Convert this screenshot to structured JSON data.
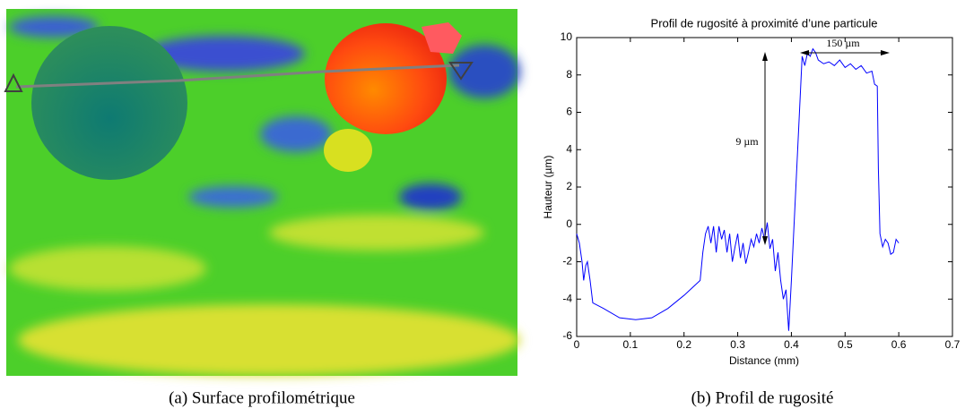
{
  "chart_data": {
    "type": "line",
    "title": "Profil de rugosité à proximité d’une particule",
    "x_label": "Distance (mm)",
    "y_label": "Hauteur (µm)",
    "x": [
      0,
      0.005,
      0.01,
      0.013,
      0.017,
      0.02,
      0.025,
      0.03,
      0.05,
      0.08,
      0.11,
      0.14,
      0.17,
      0.2,
      0.23,
      0.235,
      0.24,
      0.245,
      0.25,
      0.255,
      0.26,
      0.265,
      0.27,
      0.275,
      0.28,
      0.285,
      0.29,
      0.295,
      0.3,
      0.305,
      0.31,
      0.315,
      0.32,
      0.325,
      0.33,
      0.335,
      0.34,
      0.345,
      0.35,
      0.355,
      0.36,
      0.365,
      0.37,
      0.375,
      0.38,
      0.385,
      0.39,
      0.395,
      0.4,
      0.405,
      0.41,
      0.415,
      0.42,
      0.425,
      0.43,
      0.435,
      0.44,
      0.445,
      0.45,
      0.46,
      0.47,
      0.48,
      0.49,
      0.5,
      0.51,
      0.52,
      0.53,
      0.54,
      0.55,
      0.555,
      0.56,
      0.562,
      0.565,
      0.57,
      0.575,
      0.58,
      0.585,
      0.59,
      0.595,
      0.6
    ],
    "values": [
      -0.5,
      -1,
      -2,
      -3,
      -2.2,
      -2,
      -3,
      -4.2,
      -4.5,
      -5,
      -5.1,
      -5,
      -4.5,
      -3.8,
      -3,
      -1.5,
      -0.5,
      -0.1,
      -1,
      -0.1,
      -1.5,
      -0.1,
      -0.8,
      -0.3,
      -1.5,
      -0.5,
      -2,
      -1.2,
      -0.5,
      -1.8,
      -1,
      -2.1,
      -1.5,
      -0.8,
      -1.2,
      -0.5,
      -1,
      -0.2,
      -0.8,
      0.1,
      -1.3,
      -0.8,
      -2.5,
      -1.5,
      -3,
      -4,
      -3.5,
      -5.7,
      -3,
      0,
      3,
      6,
      9,
      8.5,
      9.2,
      9,
      9.4,
      9.2,
      8.8,
      8.6,
      8.7,
      8.5,
      8.8,
      8.4,
      8.6,
      8.3,
      8.5,
      8.1,
      8.2,
      7.5,
      7.4,
      3,
      -0.5,
      -1.2,
      -0.8,
      -1,
      -1.6,
      -1.5,
      -0.8,
      -1
    ],
    "color": "#0000ff",
    "xlim": [
      0,
      0.7
    ],
    "xticks": [
      0,
      0.1,
      0.2,
      0.3,
      0.4,
      0.5,
      0.6,
      0.7
    ],
    "ylim": [
      -6,
      10
    ],
    "yticks": [
      -6,
      -4,
      -2,
      0,
      2,
      4,
      6,
      8,
      10
    ],
    "annotations": [
      "9 µm",
      "150 µm"
    ]
  },
  "captions": [
    "(a) Surface profilométrique",
    "(b) Profil de rugosité"
  ]
}
